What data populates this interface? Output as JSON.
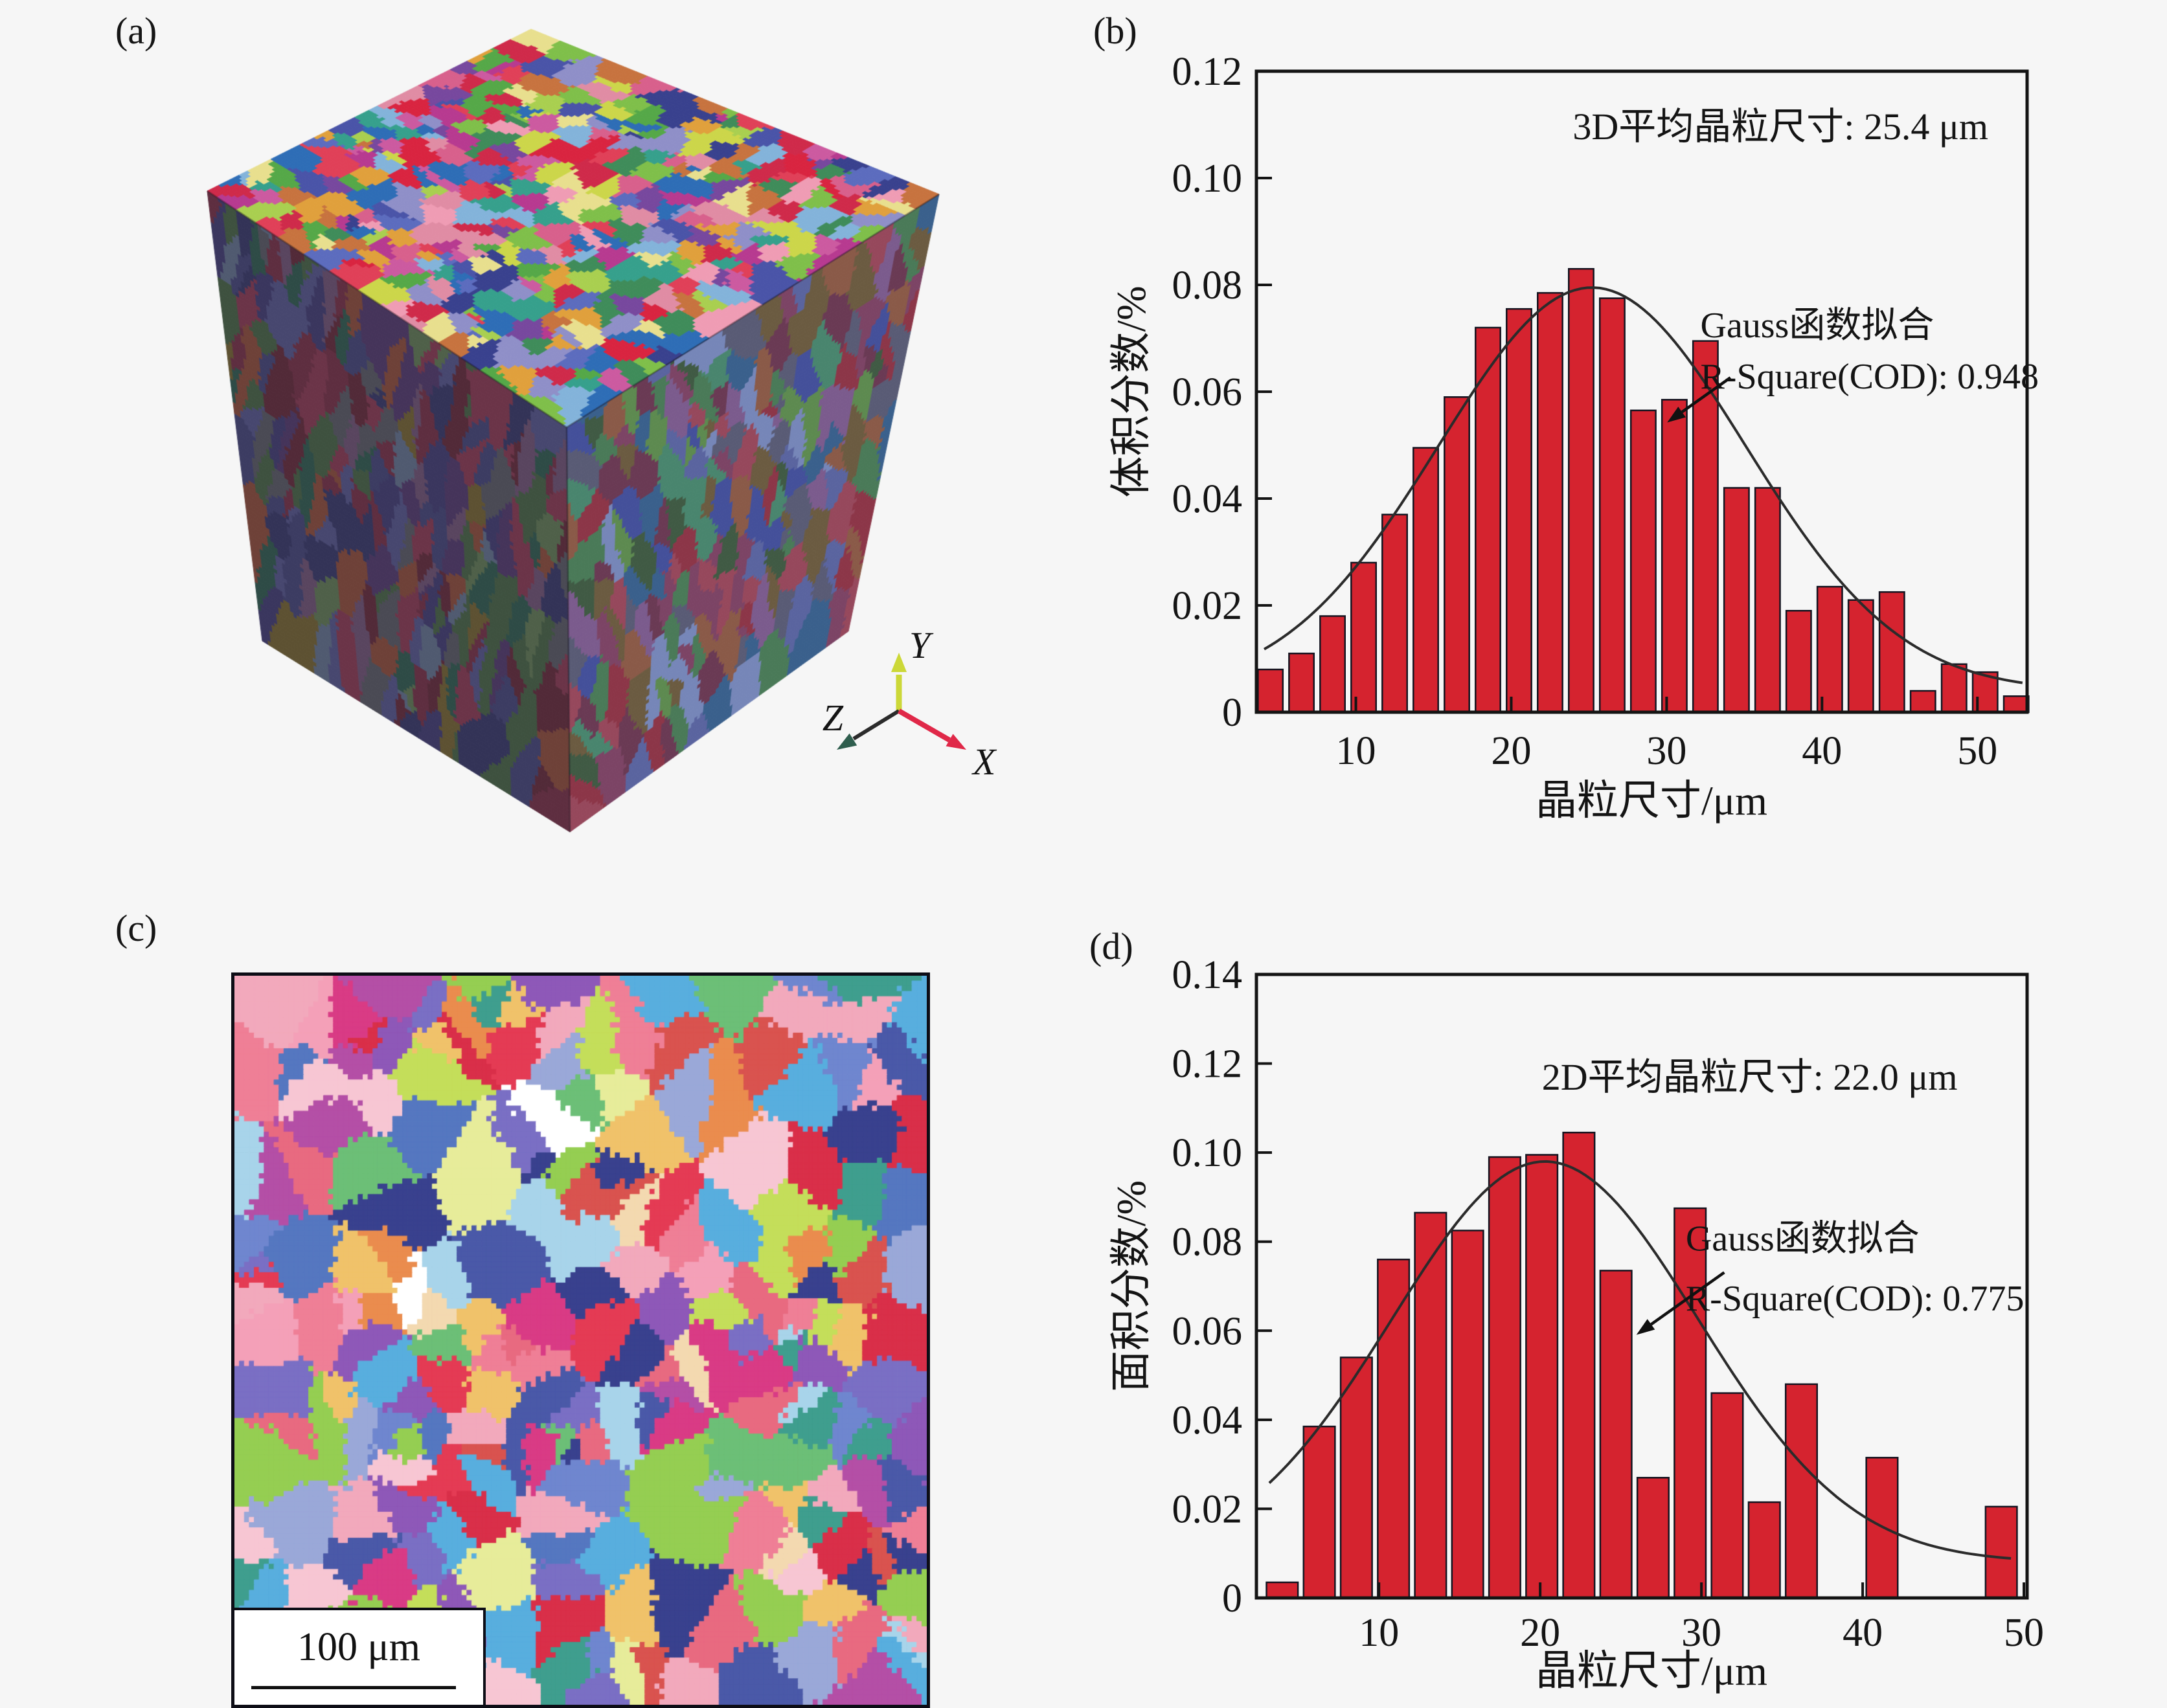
{
  "page": {
    "background": "#f6f6f6",
    "label_a": "(a)",
    "label_b": "(b)",
    "label_c": "(c)",
    "label_d": "(d)"
  },
  "axis_triad": {
    "x_label": "X",
    "y_label": "Y",
    "z_label": "Z",
    "x_color": "#e02848",
    "y_color": "#ccd838",
    "z_color": "#2f5e4e",
    "line_color": "#2b2b2b"
  },
  "scale_bar": {
    "text": "100 μm"
  },
  "chart_data": [
    {
      "id": "chart-b",
      "type": "bar",
      "title": "3D平均晶粒尺寸: 25.4 μm",
      "fit_label_line1": "Gauss函数拟合",
      "fit_label_line2": "R-Square(COD): 0.948",
      "xlabel": "晶粒尺寸/μm",
      "ylabel": "体积分数/%",
      "xlim": [
        3.6,
        53.2
      ],
      "ylim": [
        0,
        0.12
      ],
      "xticks": [
        10,
        20,
        30,
        40,
        50
      ],
      "yticks": [
        0,
        0.02,
        0.04,
        0.06,
        0.08,
        0.1,
        0.12
      ],
      "ytick_labels": [
        "0",
        "0.02",
        "0.04",
        "0.06",
        "0.08",
        "0.10",
        "0.12"
      ],
      "legend_position": "none",
      "grid": false,
      "bar_color": "#d5232f",
      "bar_edge_color": "#141420",
      "curve_color": "#2b2b2b",
      "bar_width": 1.6,
      "x": [
        4.5,
        6.5,
        8.5,
        10.5,
        12.5,
        14.5,
        16.5,
        18.5,
        20.5,
        22.5,
        24.5,
        26.5,
        28.5,
        30.5,
        32.5,
        34.5,
        36.5,
        38.5,
        40.5,
        42.5,
        44.5,
        46.5,
        48.5,
        50.5,
        52.5
      ],
      "values": [
        0.008,
        0.011,
        0.018,
        0.028,
        0.037,
        0.0495,
        0.059,
        0.072,
        0.0755,
        0.0785,
        0.083,
        0.0775,
        0.0565,
        0.0585,
        0.0695,
        0.042,
        0.042,
        0.019,
        0.0235,
        0.021,
        0.0225,
        0.004,
        0.009,
        0.0075,
        0.003
      ],
      "gauss_fit": {
        "y0": 0.004,
        "A": 0.0755,
        "xc": 25.2,
        "sigma": 9.9,
        "x_start": 4.1,
        "x_end": 53.0
      }
    },
    {
      "id": "chart-d",
      "type": "bar",
      "title": "2D平均晶粒尺寸: 22.0 μm",
      "fit_label_line1": "Gauss函数拟合",
      "fit_label_line2": "R-Square(COD): 0.775",
      "xlabel": "晶粒尺寸/μm",
      "ylabel": "面积分数/%",
      "xlim": [
        2.4,
        50.2
      ],
      "ylim": [
        0,
        0.14
      ],
      "xticks": [
        10,
        20,
        30,
        40,
        50
      ],
      "yticks": [
        0,
        0.02,
        0.04,
        0.06,
        0.08,
        0.1,
        0.12,
        0.14
      ],
      "ytick_labels": [
        "0",
        "0.02",
        "0.04",
        "0.06",
        "0.08",
        "0.10",
        "0.12",
        "0.14"
      ],
      "legend_position": "none",
      "grid": false,
      "bar_color": "#d5232f",
      "bar_edge_color": "#141420",
      "curve_color": "#2b2b2b",
      "bar_width": 1.95,
      "x": [
        4.0,
        6.3,
        8.6,
        10.9,
        13.2,
        15.5,
        17.8,
        20.1,
        22.4,
        24.7,
        27.0,
        29.3,
        31.6,
        33.9,
        36.2,
        41.2,
        48.6
      ],
      "values": [
        0.0035,
        0.0385,
        0.054,
        0.076,
        0.0865,
        0.0825,
        0.099,
        0.0995,
        0.1045,
        0.0735,
        0.027,
        0.0875,
        0.046,
        0.0215,
        0.048,
        0.0315,
        0.0205
      ],
      "gauss_fit": {
        "y0": 0.008,
        "A": 0.09,
        "xc": 20.3,
        "sigma": 9.5,
        "x_start": 3.2,
        "x_end": 49.4
      }
    }
  ],
  "microstructure": {
    "cube": {
      "top_palette": [
        "#cf2a4a",
        "#e04058",
        "#d92440",
        "#b73a90",
        "#cc5aa0",
        "#4a54a8",
        "#5c6cbe",
        "#39418e",
        "#2e6db6",
        "#55a848",
        "#7fbf4a",
        "#a9cf50",
        "#ccd64a",
        "#e0a03c",
        "#e08ca4",
        "#ef9cb4",
        "#83b3da",
        "#77489e",
        "#36a08c",
        "#e8df8e",
        "#d8608c",
        "#3f8c5a",
        "#c7733f",
        "#8f8fc8"
      ],
      "left_palette": [
        "#5e2e40",
        "#6b3448",
        "#522a38",
        "#3c3c62",
        "#47476f",
        "#333357",
        "#3e513f",
        "#4f6049",
        "#5d5132",
        "#4a4a54",
        "#45345a",
        "#2e4b46",
        "#6e4138",
        "#3a365e",
        "#59455f",
        "#505a70"
      ],
      "right_palette": [
        "#6a3a54",
        "#7c4465",
        "#44509a",
        "#5a649f",
        "#8c3648",
        "#4a7a58",
        "#5d8a50",
        "#6b5b41",
        "#595b75",
        "#7b5b8d",
        "#3a608c",
        "#96485c",
        "#49856e",
        "#7686b8",
        "#8a5a48",
        "#405a44"
      ],
      "top_seeds": 380,
      "side_seeds": 230
    },
    "map2d": {
      "palette": [
        "#e43b54",
        "#d92f49",
        "#ef7f96",
        "#f2a9bc",
        "#f7c6d3",
        "#d93b85",
        "#b44fa6",
        "#8e58b8",
        "#7a6fc4",
        "#4a59a8",
        "#39418e",
        "#6f86cf",
        "#58aede",
        "#a8d4ea",
        "#3f9e8e",
        "#6cbf77",
        "#95ce52",
        "#c4de5a",
        "#e7ec9a",
        "#f0c26a",
        "#ea8c4e",
        "#d9534f",
        "#f3d9b0",
        "#9aa8d8",
        "#ffffff",
        "#f4a0b8",
        "#5577c0",
        "#e86a80"
      ],
      "seeds": 230
    }
  }
}
